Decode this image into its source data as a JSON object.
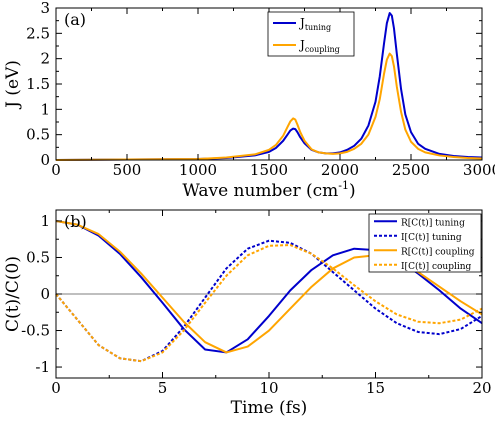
{
  "chart_data": [
    {
      "type": "line",
      "panel_label": "(a)",
      "xlabel_main": "Wave number (cm",
      "xlabel_sup": "-1",
      "xlabel_tail": ")",
      "ylabel": "J (eV)",
      "xlim": [
        0,
        3000
      ],
      "ylim": [
        0,
        3
      ],
      "xticks": [
        0,
        500,
        1000,
        1500,
        2000,
        2500,
        3000
      ],
      "yticks": [
        0,
        0.5,
        1,
        1.5,
        2,
        2.5,
        3
      ],
      "ytick_labels": [
        "0",
        "0.5",
        "1",
        "1.5",
        "2",
        "2.5",
        "3"
      ],
      "legend_position": "top-right",
      "series": [
        {
          "name": "J",
          "name_sub": "tuning",
          "color": "#0000cc",
          "dash": "solid",
          "x": [
            0,
            500,
            1000,
            1200,
            1400,
            1500,
            1550,
            1600,
            1630,
            1650,
            1670,
            1685,
            1700,
            1720,
            1750,
            1800,
            1850,
            1900,
            1950,
            2000,
            2050,
            2100,
            2150,
            2200,
            2250,
            2280,
            2310,
            2330,
            2350,
            2365,
            2380,
            2400,
            2430,
            2460,
            2500,
            2550,
            2600,
            2700,
            2800,
            2900,
            3000
          ],
          "y": [
            0.0,
            0.01,
            0.02,
            0.04,
            0.09,
            0.16,
            0.24,
            0.38,
            0.5,
            0.58,
            0.62,
            0.61,
            0.55,
            0.45,
            0.33,
            0.2,
            0.15,
            0.13,
            0.13,
            0.15,
            0.2,
            0.28,
            0.42,
            0.68,
            1.15,
            1.65,
            2.3,
            2.7,
            2.9,
            2.85,
            2.6,
            2.1,
            1.4,
            0.9,
            0.55,
            0.32,
            0.22,
            0.12,
            0.08,
            0.06,
            0.05
          ]
        },
        {
          "name": "J",
          "name_sub": "coupling",
          "color": "#ffa500",
          "dash": "solid",
          "x": [
            0,
            500,
            1000,
            1200,
            1400,
            1500,
            1550,
            1600,
            1630,
            1650,
            1670,
            1685,
            1700,
            1720,
            1750,
            1800,
            1850,
            1900,
            1950,
            2000,
            2050,
            2100,
            2150,
            2200,
            2250,
            2280,
            2310,
            2330,
            2350,
            2365,
            2380,
            2400,
            2430,
            2460,
            2500,
            2550,
            2600,
            2700,
            2800,
            2900,
            3000
          ],
          "y": [
            0.0,
            0.01,
            0.02,
            0.05,
            0.11,
            0.2,
            0.3,
            0.48,
            0.65,
            0.76,
            0.82,
            0.8,
            0.7,
            0.55,
            0.38,
            0.21,
            0.15,
            0.13,
            0.12,
            0.13,
            0.16,
            0.22,
            0.32,
            0.5,
            0.85,
            1.2,
            1.7,
            1.98,
            2.1,
            2.05,
            1.85,
            1.45,
            0.95,
            0.6,
            0.36,
            0.22,
            0.15,
            0.09,
            0.06,
            0.04,
            0.03
          ]
        }
      ]
    },
    {
      "type": "line",
      "panel_label": "(b)",
      "xlabel": "Time (fs)",
      "ylabel": "C(t)/C(0)",
      "xlim": [
        0,
        20
      ],
      "ylim": [
        -1.15,
        1.15
      ],
      "xticks": [
        0,
        5,
        10,
        15,
        20
      ],
      "yticks": [
        -1,
        -0.5,
        0,
        0.5,
        1
      ],
      "ytick_labels": [
        "-1",
        "-0.5",
        "0",
        "0.5",
        "1"
      ],
      "legend_position": "top-right",
      "series": [
        {
          "name": "R[C(t)] tuning",
          "color": "#0000cc",
          "dash": "solid",
          "x": [
            0,
            1,
            2,
            3,
            4,
            5,
            6,
            7,
            8,
            9,
            10,
            11,
            12,
            13,
            14,
            15,
            16,
            17,
            18,
            19,
            20
          ],
          "y": [
            1.0,
            0.95,
            0.8,
            0.55,
            0.23,
            -0.12,
            -0.48,
            -0.76,
            -0.8,
            -0.62,
            -0.3,
            0.05,
            0.33,
            0.53,
            0.62,
            0.6,
            0.48,
            0.28,
            0.05,
            -0.2,
            -0.4
          ]
        },
        {
          "name": "I[C(t)] tuning",
          "color": "#0000cc",
          "dash": "dotted",
          "x": [
            0,
            1,
            2,
            3,
            4,
            5,
            6,
            7,
            8,
            9,
            10,
            11,
            12,
            13,
            14,
            15,
            16,
            17,
            18,
            19,
            20
          ],
          "y": [
            0.0,
            -0.35,
            -0.7,
            -0.88,
            -0.92,
            -0.78,
            -0.45,
            -0.05,
            0.35,
            0.62,
            0.73,
            0.7,
            0.55,
            0.3,
            0.05,
            -0.2,
            -0.4,
            -0.52,
            -0.55,
            -0.48,
            -0.3
          ]
        },
        {
          "name": "R[C(t)] coupling",
          "color": "#ffa500",
          "dash": "solid",
          "x": [
            0,
            1,
            2,
            3,
            4,
            5,
            6,
            7,
            8,
            9,
            10,
            11,
            12,
            13,
            14,
            15,
            16,
            17,
            18,
            19,
            20
          ],
          "y": [
            1.0,
            0.95,
            0.82,
            0.58,
            0.28,
            -0.05,
            -0.38,
            -0.66,
            -0.8,
            -0.72,
            -0.5,
            -0.2,
            0.1,
            0.35,
            0.5,
            0.53,
            0.45,
            0.3,
            0.1,
            -0.1,
            -0.28
          ]
        },
        {
          "name": "I[C(t)] coupling",
          "color": "#ffa500",
          "dash": "dotted",
          "x": [
            0,
            1,
            2,
            3,
            4,
            5,
            6,
            7,
            8,
            9,
            10,
            11,
            12,
            13,
            14,
            15,
            16,
            17,
            18,
            19,
            20
          ],
          "y": [
            0.0,
            -0.35,
            -0.7,
            -0.88,
            -0.92,
            -0.8,
            -0.5,
            -0.12,
            0.25,
            0.53,
            0.66,
            0.67,
            0.55,
            0.35,
            0.12,
            -0.1,
            -0.28,
            -0.38,
            -0.4,
            -0.35,
            -0.2
          ]
        }
      ]
    }
  ]
}
